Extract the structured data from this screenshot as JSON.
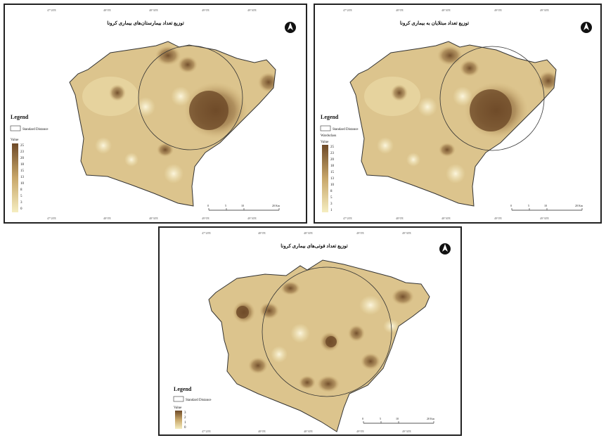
{
  "maps": [
    {
      "title": "توزیع تعداد بیمارستان‌های بیماری کرونا",
      "legend": {
        "title": "Legend",
        "circle_label": "Standard Distance",
        "subtitle": "",
        "value_label": "Value",
        "classes": [
          "25",
          "23",
          "20",
          "18",
          "15",
          "13",
          "10",
          "8",
          "5",
          "3",
          "0"
        ]
      },
      "scale_labels": [
        "0",
        "5",
        "10",
        "20 Km"
      ]
    },
    {
      "title": "توزیع تعداد مبتلایان به بیماری کرونا",
      "legend": {
        "title": "Legend",
        "circle_label": "Standard Distance",
        "subtitle": "Wardsclass",
        "value_label": "Value",
        "classes": [
          "25",
          "23",
          "20",
          "18",
          "15",
          "13",
          "10",
          "8",
          "5",
          "3",
          "1"
        ]
      },
      "scale_labels": [
        "0",
        "5",
        "10",
        "20 Km"
      ]
    },
    {
      "title": "توزیع تعداد فوتی‌های بیماری کرونا",
      "legend": {
        "title": "Legend",
        "circle_label": "Standard Distance",
        "subtitle": "",
        "value_label": "Value",
        "classes": [
          "3",
          "2",
          "1",
          "0"
        ]
      },
      "scale_labels": [
        "0",
        "5",
        "10",
        "20 Km"
      ]
    }
  ],
  "colors": {
    "low": "#f5edc0",
    "mid": "#c8a76a",
    "high": "#6e4a28",
    "outline": "#333333"
  },
  "icons": [
    "north-arrow-icon"
  ]
}
